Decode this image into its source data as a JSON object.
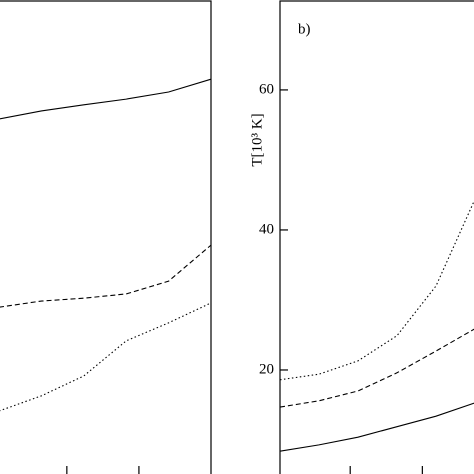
{
  "chart_data": [
    {
      "type": "line",
      "x": [
        0,
        0.2,
        0.4,
        0.6,
        0.8,
        1
      ],
      "xlim": [
        0,
        1
      ],
      "xticks": [
        0.32,
        0.66
      ],
      "ylim": [
        0,
        100
      ],
      "series": [
        {
          "color": "#000000",
          "dash": "solid",
          "values": [
            75.1,
            76.8,
            78.1,
            79.3,
            80.8,
            83.5
          ]
        },
        {
          "color": "#000000",
          "dash": "dashed",
          "values": [
            35.4,
            36.7,
            37.3,
            38.2,
            40.9,
            48.5
          ]
        },
        {
          "color": "#000000",
          "dash": "dotted",
          "values": [
            13.5,
            16.7,
            20.9,
            28.3,
            32.1,
            36.3
          ]
        }
      ]
    },
    {
      "type": "line",
      "annotation": "b)",
      "ylabel": "T[10³ K]",
      "x": [
        0,
        0.2,
        0.4,
        0.6,
        0.8,
        1
      ],
      "xlim": [
        0,
        1
      ],
      "xticks": [
        0.36,
        0.73
      ],
      "ylim": [
        5,
        72.7
      ],
      "yticks": [
        20,
        40,
        60
      ],
      "series": [
        {
          "color": "#000000",
          "dash": "solid",
          "values": [
            8.4,
            9.3,
            10.4,
            11.9,
            13.4,
            15.3
          ]
        },
        {
          "color": "#000000",
          "dash": "dashed",
          "values": [
            14.7,
            15.6,
            17,
            19.6,
            22.7,
            25.9
          ]
        },
        {
          "color": "#000000",
          "dash": "dotted",
          "values": [
            18.6,
            19.4,
            21.3,
            24.9,
            32,
            44.4
          ]
        }
      ]
    }
  ]
}
